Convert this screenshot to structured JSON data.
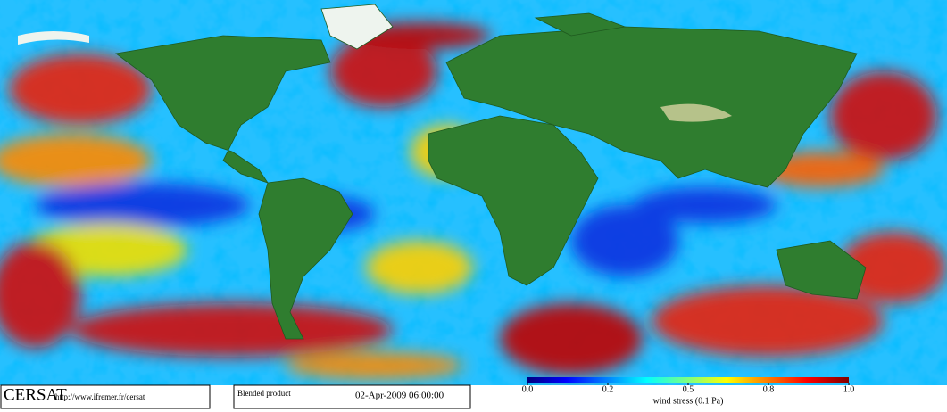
{
  "footer": {
    "logo": "CERSAT",
    "url": "http://www.ifremer.fr/cersat",
    "product": "Blended product",
    "date": "02-Apr-2009 06:00:00"
  },
  "colorbar": {
    "title": "wind stress (0.1 Pa)",
    "range": [
      0,
      1
    ],
    "ticks": [
      {
        "value": 0,
        "label": "0.0"
      },
      0.2,
      0.5,
      0.8,
      {
        "value": 1,
        "label": "1.0"
      }
    ]
  }
}
